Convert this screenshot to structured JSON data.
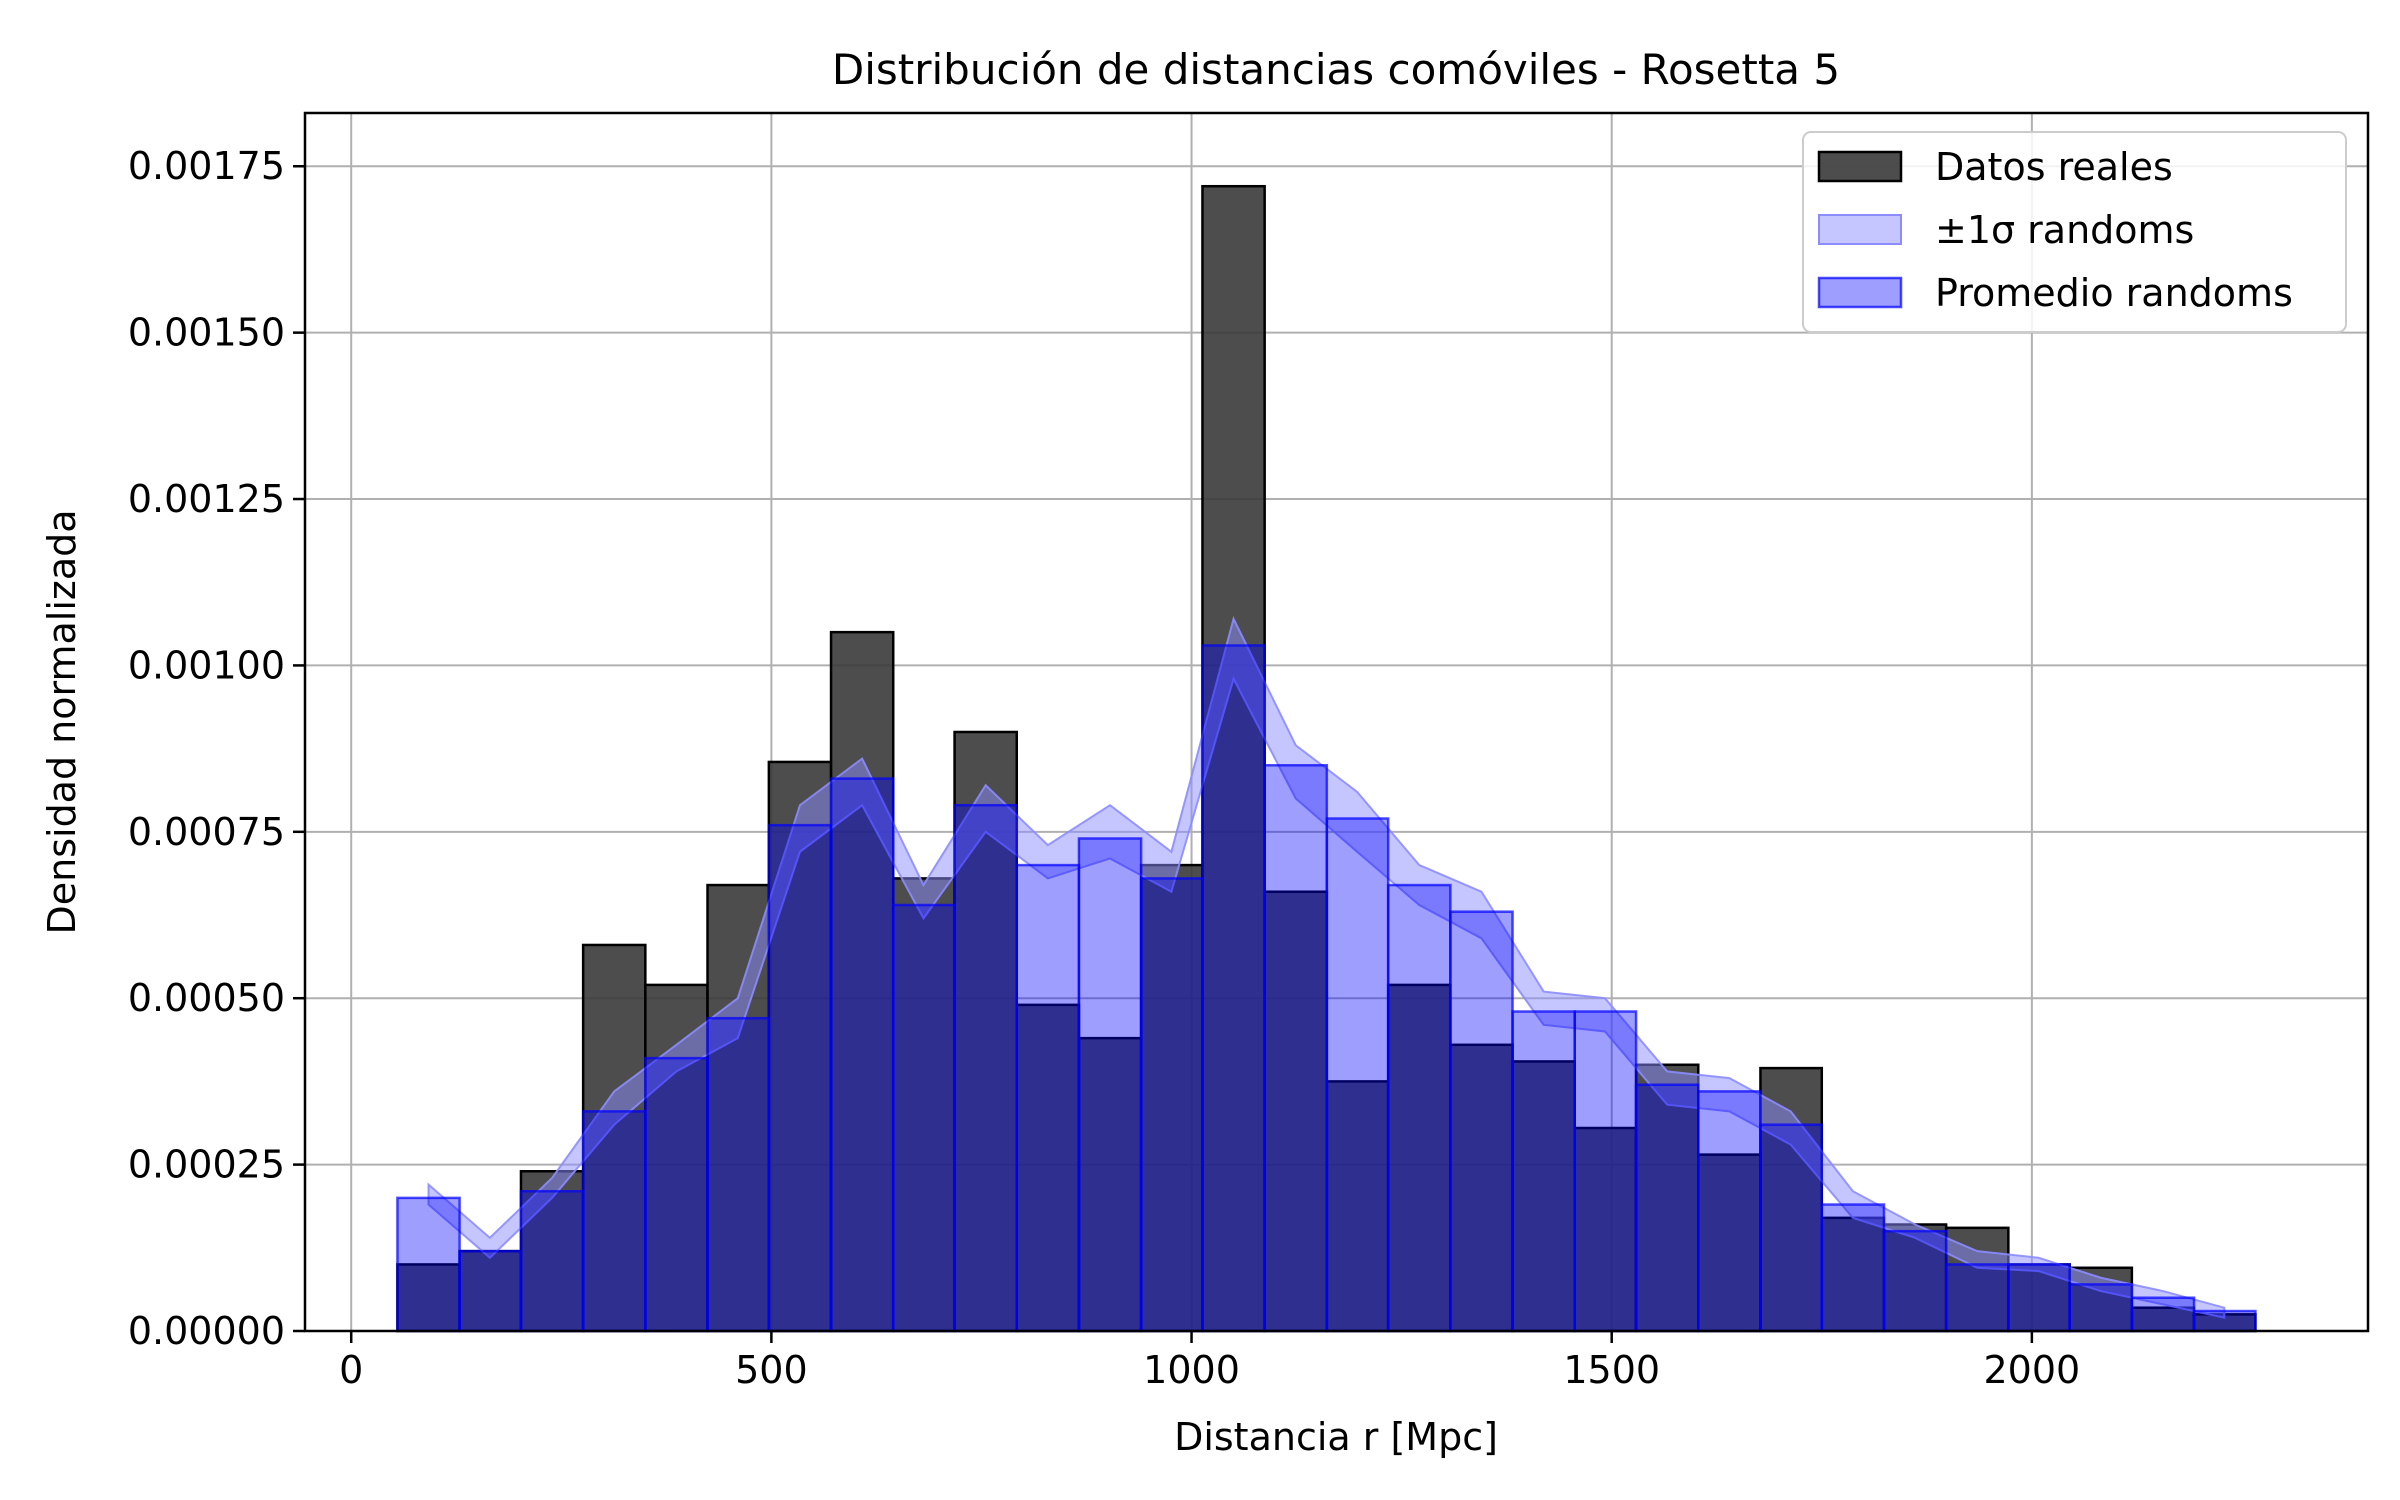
{
  "chart_data": {
    "type": "bar",
    "title": "Distribución de distancias comóviles - Rosetta 5",
    "xlabel": "Distancia r [Mpc]",
    "ylabel": "Densidad normalizada",
    "xlim": [
      -55,
      2400
    ],
    "ylim": [
      0,
      0.00183
    ],
    "xticks": [
      0,
      500,
      1000,
      1500,
      2000
    ],
    "xtick_labels": [
      "0",
      "500",
      "1000",
      "1500",
      "2000"
    ],
    "yticks": [
      0,
      0.00025,
      0.0005,
      0.00075,
      0.001,
      0.00125,
      0.0015,
      0.00175
    ],
    "ytick_labels": [
      "0.00000",
      "0.00025",
      "0.00050",
      "0.00075",
      "0.00100",
      "0.00125",
      "0.00150",
      "0.00175"
    ],
    "grid": true,
    "legend_position": "top-right",
    "bin_edges": [
      55,
      129,
      202,
      276,
      350,
      424,
      497,
      571,
      645,
      718,
      792,
      866,
      940,
      1013,
      1087,
      1161,
      1234,
      1308,
      1382,
      1456,
      1529,
      1603,
      1677,
      1750,
      1824,
      1898,
      1972,
      2045,
      2119,
      2193,
      2266
    ],
    "series": [
      {
        "name": "Datos reales",
        "kind": "histogram",
        "color": "#3a3a3a",
        "values": [
          0.0001,
          0.00012,
          0.00024,
          0.00058,
          0.00052,
          0.00067,
          0.000855,
          0.00105,
          0.00068,
          0.0009,
          0.00049,
          0.00044,
          0.0007,
          0.00172,
          0.00066,
          0.000375,
          0.00052,
          0.00043,
          0.000405,
          0.000305,
          0.0004,
          0.000265,
          0.000395,
          0.00017,
          0.00016,
          0.000155,
          0.0001,
          9.5e-05,
          3.5e-05,
          2.5e-05
        ]
      },
      {
        "name": "±1σ randoms",
        "kind": "band",
        "color": "#8c8cff",
        "x": [
          92,
          165,
          239,
          313,
          387,
          460,
          534,
          608,
          681,
          755,
          829,
          903,
          976,
          1050,
          1124,
          1197,
          1271,
          1345,
          1419,
          1492,
          1566,
          1640,
          1713,
          1787,
          1861,
          1935,
          2008,
          2082,
          2156,
          2229
        ],
        "lower": [
          0.00019,
          0.00011,
          0.0002,
          0.00031,
          0.00039,
          0.00044,
          0.00072,
          0.00079,
          0.00062,
          0.00075,
          0.00068,
          0.00071,
          0.00066,
          0.00098,
          0.0008,
          0.00072,
          0.00064,
          0.00059,
          0.00046,
          0.00045,
          0.00034,
          0.00033,
          0.00028,
          0.00017,
          0.00014,
          9.5e-05,
          9e-05,
          6e-05,
          4e-05,
          2e-05
        ],
        "upper": [
          0.00022,
          0.00014,
          0.00023,
          0.00036,
          0.00043,
          0.0005,
          0.00079,
          0.00086,
          0.00067,
          0.00082,
          0.00073,
          0.00079,
          0.00072,
          0.00107,
          0.00088,
          0.00081,
          0.0007,
          0.00066,
          0.00051,
          0.0005,
          0.00039,
          0.00038,
          0.00033,
          0.00021,
          0.00016,
          0.00012,
          0.00011,
          8e-05,
          6e-05,
          3.5e-05
        ]
      },
      {
        "name": "Promedio randoms",
        "kind": "histogram",
        "color": "#0000ff",
        "values": [
          0.0002,
          0.00012,
          0.00021,
          0.00033,
          0.00041,
          0.00047,
          0.00076,
          0.00083,
          0.00064,
          0.00079,
          0.0007,
          0.00074,
          0.00068,
          0.00103,
          0.00085,
          0.00077,
          0.00067,
          0.00063,
          0.00048,
          0.00048,
          0.00037,
          0.00036,
          0.00031,
          0.00019,
          0.00015,
          0.0001,
          0.0001,
          7e-05,
          5e-05,
          3e-05
        ]
      }
    ]
  }
}
